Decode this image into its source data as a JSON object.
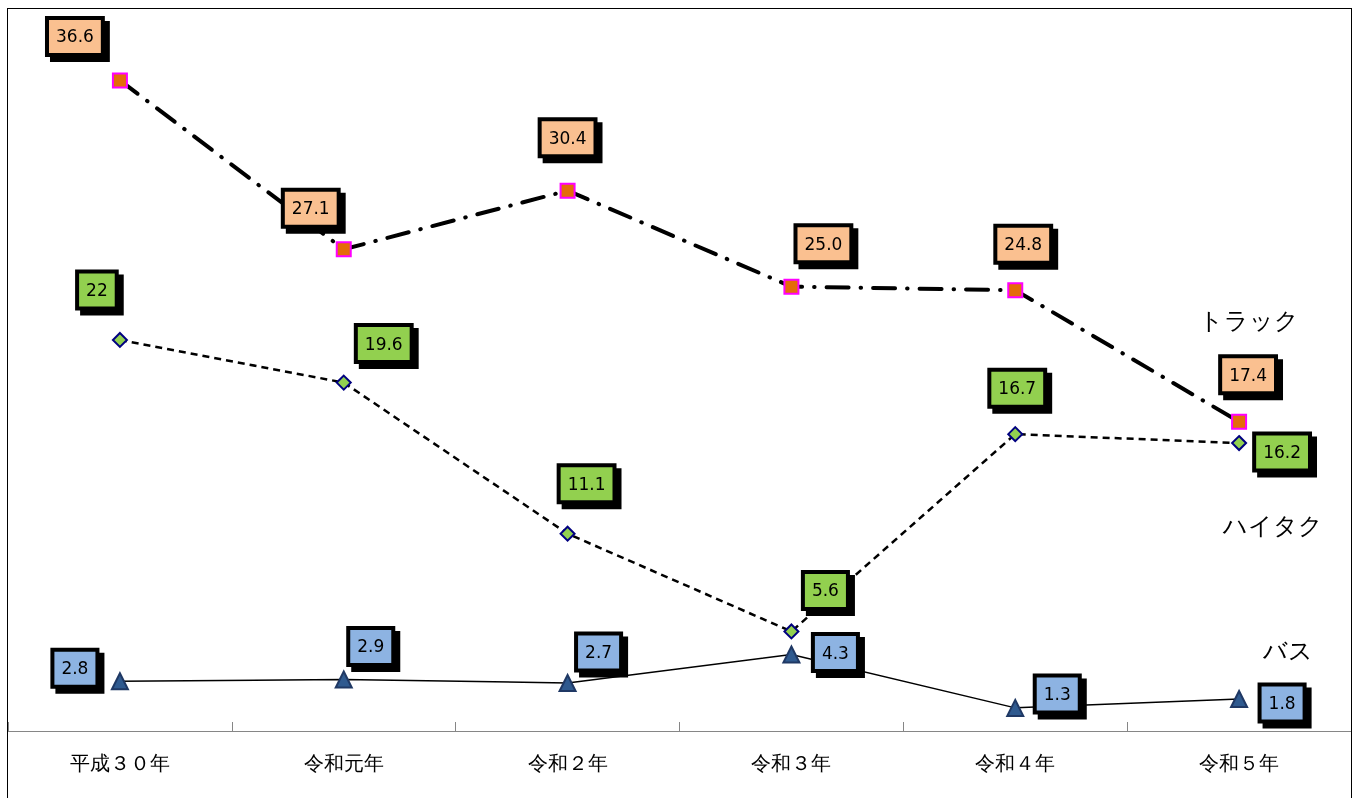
{
  "chart_data": {
    "type": "line",
    "categories": [
      "平成３０年",
      "令和元年",
      "令和２年",
      "令和３年",
      "令和４年",
      "令和５年"
    ],
    "series": [
      {
        "name": "トラック",
        "color": "#e46c0a",
        "marker": "square",
        "line_style": "dashed",
        "values": [
          36.6,
          27.1,
          30.4,
          25.0,
          24.8,
          17.4
        ],
        "value_labels": [
          "36.6",
          "27.1",
          "30.4",
          "25.0",
          "24.8",
          "17.4"
        ]
      },
      {
        "name": "ハイタク",
        "color": "#92d050",
        "marker": "diamond",
        "line_style": "dashed",
        "values": [
          22,
          19.6,
          11.1,
          5.6,
          16.7,
          16.2
        ],
        "value_labels": [
          "22",
          "19.6",
          "11.1",
          "5.6",
          "16.7",
          "16.2"
        ]
      },
      {
        "name": "バス",
        "color": "#2f5a8f",
        "marker": "triangle",
        "line_style": "solid",
        "values": [
          2.8,
          2.9,
          2.7,
          4.3,
          1.3,
          1.8
        ],
        "value_labels": [
          "2.8",
          "2.9",
          "2.7",
          "4.3",
          "1.3",
          "1.8"
        ]
      }
    ],
    "tick_labels": "x",
    "grid": false,
    "legend": false
  }
}
